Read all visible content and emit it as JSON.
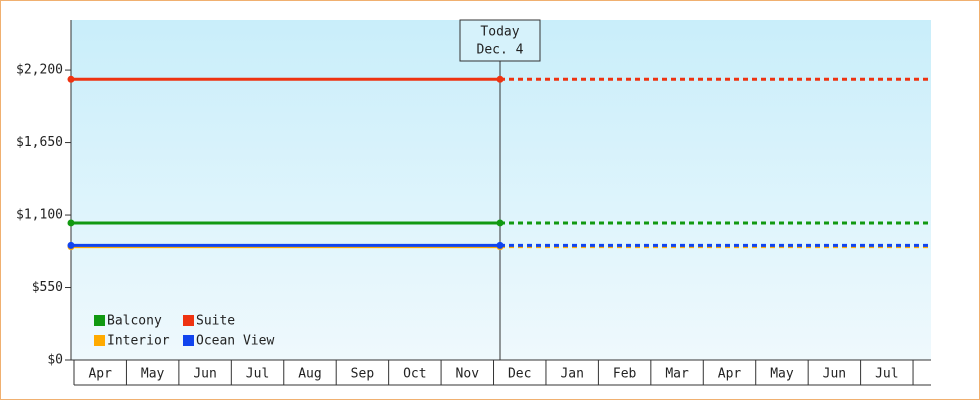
{
  "chart_data": {
    "type": "line",
    "categories": [
      "Apr",
      "May",
      "Jun",
      "Jul",
      "Aug",
      "Sep",
      "Oct",
      "Nov",
      "Dec",
      "Jan",
      "Feb",
      "Mar",
      "Apr",
      "May",
      "Jun",
      "Jul"
    ],
    "series": [
      {
        "name": "Balcony",
        "color": "#119911",
        "value": 1040
      },
      {
        "name": "Suite",
        "color": "#ee3311",
        "value": 2130
      },
      {
        "name": "Interior",
        "color": "#ffaa00",
        "value": 860
      },
      {
        "name": "Ocean View",
        "color": "#1144ee",
        "value": 870
      }
    ],
    "today_label": "Today",
    "today_date": "Dec. 4",
    "ylim": [
      0,
      2580
    ],
    "yticks": [
      {
        "value": 0,
        "label": "$0"
      },
      {
        "value": 550,
        "label": "$550"
      },
      {
        "value": 1100,
        "label": "$1,100"
      },
      {
        "value": 1650,
        "label": "$1,650"
      },
      {
        "value": 2200,
        "label": "$2,200"
      }
    ]
  }
}
